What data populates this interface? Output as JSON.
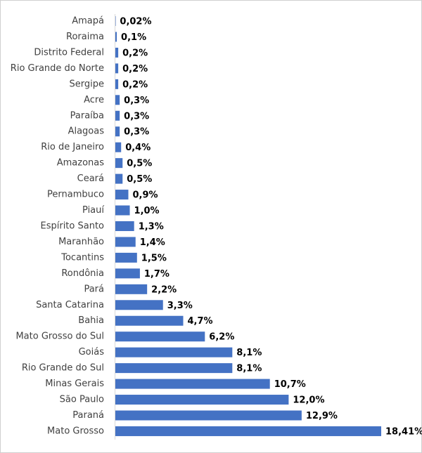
{
  "chart_data": {
    "type": "bar",
    "orientation": "horizontal",
    "color": "#4472c4",
    "categories": [
      "Amapá",
      "Roraima",
      "Distrito Federal",
      "Rio Grande do Norte",
      "Sergipe",
      "Acre",
      "Paraíba",
      "Alagoas",
      "Rio de Janeiro",
      "Amazonas",
      "Ceará",
      "Pernambuco",
      "Piauí",
      "Espírito Santo",
      "Maranhão",
      "Tocantins",
      "Rondônia",
      "Pará",
      "Santa Catarina",
      "Bahia",
      "Mato Grosso do Sul",
      "Goiás",
      "Rio Grande do Sul",
      "Minas Gerais",
      "São Paulo",
      "Paraná",
      "Mato Grosso"
    ],
    "values": [
      0.02,
      0.1,
      0.2,
      0.2,
      0.2,
      0.3,
      0.3,
      0.3,
      0.4,
      0.5,
      0.5,
      0.9,
      1.0,
      1.3,
      1.4,
      1.5,
      1.7,
      2.2,
      3.3,
      4.7,
      6.2,
      8.1,
      8.1,
      10.7,
      12.0,
      12.9,
      18.41
    ],
    "value_labels": [
      "0,02%",
      "0,1%",
      "0,2%",
      "0,2%",
      "0,2%",
      "0,3%",
      "0,3%",
      "0,3%",
      "0,4%",
      "0,5%",
      "0,5%",
      "0,9%",
      "1,0%",
      "1,3%",
      "1,4%",
      "1,5%",
      "1,7%",
      "2,2%",
      "3,3%",
      "4,7%",
      "6,2%",
      "8,1%",
      "8,1%",
      "10,7%",
      "12,0%",
      "12,9%",
      "18,41%"
    ]
  }
}
